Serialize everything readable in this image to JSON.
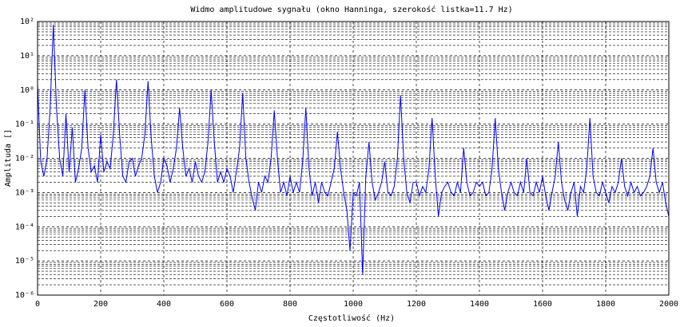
{
  "chart_data": {
    "type": "line",
    "title": "Widmo amplitudowe sygnału (okno Hanninga, szerokość listka=11.7 Hz)",
    "x_label": "Częstotliwość (Hz)",
    "y_label": "Amplituda []",
    "y_log": true,
    "grid": true,
    "minor_grid": true,
    "xlim": [
      0,
      2000
    ],
    "xticks": [
      0,
      200,
      400,
      600,
      800,
      1000,
      1200,
      1400,
      1600,
      1800,
      2000
    ],
    "ylim": [
      1e-06,
      100
    ],
    "yticks": [
      {
        "value": 1e-06,
        "label": "10⁻⁶"
      },
      {
        "value": 1e-05,
        "label": "10⁻⁵"
      },
      {
        "value": 0.0001,
        "label": "10⁻⁴"
      },
      {
        "value": 0.001,
        "label": "10⁻³"
      },
      {
        "value": 0.01,
        "label": "10⁻²"
      },
      {
        "value": 0.1,
        "label": "10⁻¹"
      },
      {
        "value": 1,
        "label": "10⁰"
      },
      {
        "value": 10,
        "label": "10¹"
      },
      {
        "value": 100,
        "label": "10²"
      }
    ],
    "x": [
      0,
      10,
      20,
      30,
      40,
      50,
      60,
      70,
      80,
      90,
      100,
      110,
      120,
      130,
      140,
      150,
      160,
      170,
      180,
      190,
      200,
      210,
      220,
      230,
      240,
      250,
      260,
      270,
      280,
      290,
      300,
      310,
      320,
      330,
      340,
      350,
      360,
      370,
      380,
      390,
      400,
      410,
      420,
      430,
      440,
      450,
      460,
      470,
      480,
      490,
      500,
      510,
      520,
      530,
      540,
      550,
      560,
      570,
      580,
      590,
      600,
      610,
      620,
      630,
      640,
      650,
      660,
      670,
      680,
      690,
      700,
      710,
      720,
      730,
      740,
      750,
      760,
      770,
      780,
      790,
      800,
      810,
      820,
      830,
      840,
      850,
      860,
      870,
      880,
      890,
      900,
      910,
      920,
      930,
      940,
      950,
      960,
      970,
      980,
      990,
      1000,
      1010,
      1020,
      1030,
      1040,
      1050,
      1060,
      1070,
      1080,
      1090,
      1100,
      1110,
      1120,
      1130,
      1140,
      1150,
      1160,
      1170,
      1180,
      1190,
      1200,
      1210,
      1220,
      1230,
      1240,
      1250,
      1260,
      1270,
      1280,
      1290,
      1300,
      1310,
      1320,
      1330,
      1340,
      1350,
      1360,
      1370,
      1380,
      1390,
      1400,
      1410,
      1420,
      1430,
      1440,
      1450,
      1460,
      1470,
      1480,
      1490,
      1500,
      1510,
      1520,
      1530,
      1540,
      1550,
      1560,
      1570,
      1580,
      1590,
      1600,
      1610,
      1620,
      1630,
      1640,
      1650,
      1660,
      1670,
      1680,
      1690,
      1700,
      1710,
      1720,
      1730,
      1740,
      1750,
      1760,
      1770,
      1780,
      1790,
      1800,
      1810,
      1820,
      1830,
      1840,
      1850,
      1860,
      1870,
      1880,
      1890,
      1900,
      1910,
      1920,
      1930,
      1940,
      1950,
      1960,
      1970,
      1980,
      1990,
      2000
    ],
    "series": [
      {
        "color": "#0000ff",
        "values": [
          1.5,
          0.008,
          0.003,
          0.01,
          0.3,
          80,
          0.3,
          0.01,
          0.003,
          0.2,
          0.004,
          0.08,
          0.002,
          0.005,
          0.02,
          1,
          0.02,
          0.004,
          0.006,
          0.002,
          0.05,
          0.004,
          0.008,
          0.005,
          0.05,
          2,
          0.05,
          0.003,
          0.002,
          0.008,
          0.01,
          0.003,
          0.006,
          0.01,
          0.05,
          1.8,
          0.04,
          0.003,
          0.001,
          0.002,
          0.01,
          0.006,
          0.002,
          0.005,
          0.02,
          0.3,
          0.02,
          0.003,
          0.005,
          0.002,
          0.008,
          0.003,
          0.002,
          0.004,
          0.03,
          1,
          0.03,
          0.002,
          0.004,
          0.002,
          0.005,
          0.003,
          0.001,
          0.004,
          0.02,
          0.8,
          0.01,
          0.002,
          0.0007,
          0.0003,
          0.002,
          0.001,
          0.003,
          0.002,
          0.01,
          0.25,
          0.01,
          0.001,
          0.002,
          0.0008,
          0.003,
          0.001,
          0.002,
          0.001,
          0.008,
          0.3,
          0.005,
          0.0008,
          0.002,
          0.0005,
          0.002,
          0.001,
          0.0008,
          0.002,
          0.005,
          0.06,
          0.005,
          0.001,
          0.0003,
          2e-05,
          0.001,
          0.0008,
          0.002,
          4e-06,
          0.003,
          0.03,
          0.002,
          0.0006,
          0.001,
          0.002,
          0.008,
          0.001,
          0.0008,
          0.0015,
          0.01,
          0.7,
          0.01,
          0.001,
          0.0005,
          0.002,
          0.002,
          0.0008,
          0.0015,
          0.001,
          0.005,
          0.15,
          0.003,
          0.0002,
          0.001,
          0.0015,
          0.002,
          0.001,
          0.0008,
          0.002,
          0.001,
          0.02,
          0.002,
          0.0008,
          0.001,
          0.002,
          0.0015,
          0.002,
          0.0008,
          0.001,
          0.005,
          0.15,
          0.005,
          0.001,
          0.0003,
          0.001,
          0.002,
          0.001,
          0.0008,
          0.002,
          0.001,
          0.01,
          0.001,
          0.0008,
          0.002,
          0.001,
          0.003,
          0.0008,
          0.0003,
          0.001,
          0.003,
          0.03,
          0.002,
          0.0006,
          0.0003,
          0.001,
          0.002,
          0.0002,
          0.0015,
          0.001,
          0.005,
          0.15,
          0.003,
          0.001,
          0.0008,
          0.002,
          0.001,
          0.0005,
          0.0015,
          0.001,
          0.002,
          0.01,
          0.0015,
          0.0008,
          0.002,
          0.001,
          0.0015,
          0.0008,
          0.001,
          0.0015,
          0.003,
          0.02,
          0.002,
          0.001,
          0.002,
          0.0005,
          0.0002
        ]
      }
    ]
  }
}
